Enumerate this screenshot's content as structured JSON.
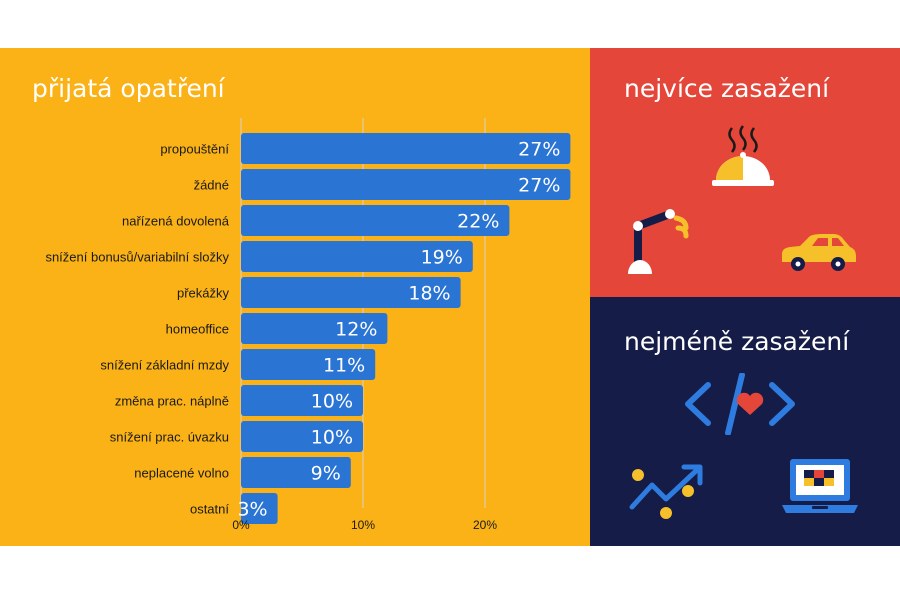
{
  "panels": {
    "measures_title": "přijatá opatření",
    "most_affected_title": "nejvíce zasažení",
    "least_affected_title": "nejméně zasažení"
  },
  "icons": {
    "most_affected": [
      "restaurant-cloche-icon",
      "robot-arm-icon",
      "car-icon"
    ],
    "least_affected": [
      "code-heart-icon",
      "growth-chart-icon",
      "laptop-icon"
    ]
  },
  "colors": {
    "bar": "#2a74d4",
    "left_background": "#fbb217",
    "most_affected_background": "#e4473a",
    "least_affected_background": "#141c47",
    "icon_yellow": "#f6c02b",
    "icon_blue": "#2f7ce0"
  },
  "chart_data": {
    "type": "bar",
    "orientation": "horizontal",
    "categories": [
      "propouštění",
      "žádné",
      "nařízená dovolená",
      "snížení bonusů/variabilní složky",
      "překážky",
      "homeoffice",
      "snížení základní mzdy",
      "změna prac. náplně",
      "snížení prac. úvazku",
      "neplacené volno",
      "ostatní"
    ],
    "values": [
      27,
      27,
      22,
      19,
      18,
      12,
      11,
      10,
      10,
      9,
      3
    ],
    "value_labels": [
      "27%",
      "27%",
      "22%",
      "19%",
      "18%",
      "12%",
      "11%",
      "10%",
      "10%",
      "9%",
      "3%"
    ],
    "x_ticks": [
      0,
      10,
      20
    ],
    "x_tick_labels": [
      "0%",
      "10%",
      "20%"
    ],
    "xlim": [
      0,
      27
    ],
    "grid": true,
    "title": "přijatá opatření"
  }
}
